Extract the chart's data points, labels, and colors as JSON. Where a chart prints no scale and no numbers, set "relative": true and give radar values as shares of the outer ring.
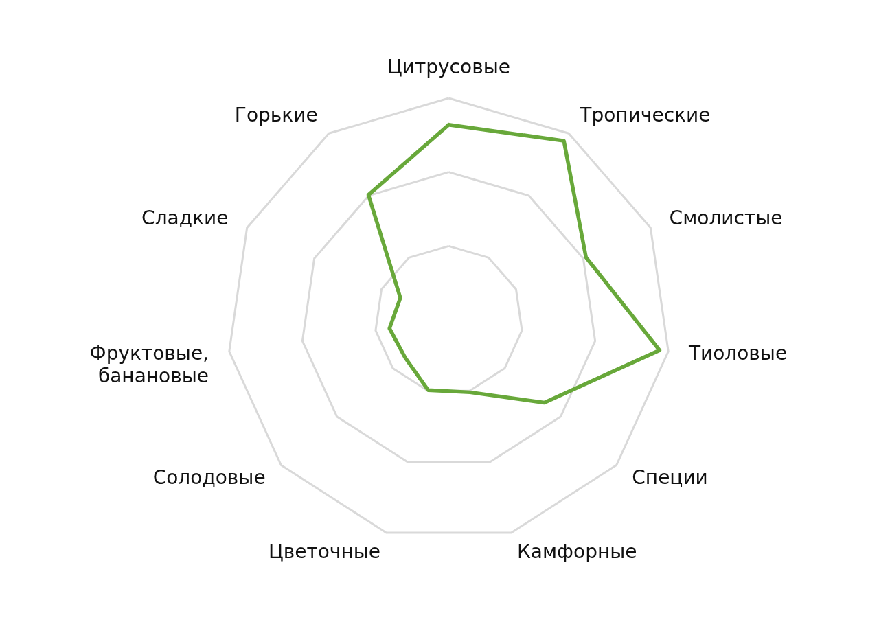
{
  "chart_data": {
    "type": "radar",
    "relative": true,
    "grid": true,
    "categories": [
      "Цитрусовые",
      "Тропические",
      "Смолистые",
      "Тиоловые",
      "Специи",
      "Камфорные",
      "Цветочные",
      "Солодовые",
      "Фруктовые, банановые",
      "Сладкие",
      "Горькие"
    ],
    "series": [
      {
        "color": "#68a83a",
        "values": [
          0.88,
          0.96,
          0.68,
          0.96,
          0.57,
          0.34,
          0.33,
          0.26,
          0.27,
          0.24,
          0.67
        ]
      }
    ]
  }
}
